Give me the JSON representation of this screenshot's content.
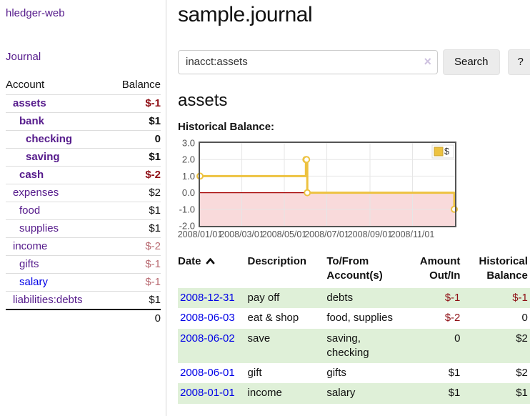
{
  "sidebar": {
    "app_title": "hledger-web",
    "journal_link": "Journal",
    "accounts_table": {
      "headers": {
        "account": "Account",
        "balance": "Balance"
      },
      "rows": [
        {
          "account": "assets",
          "balance": "$-1",
          "depth": 1,
          "bold": true,
          "negative": true,
          "link_color": "purple"
        },
        {
          "account": "bank",
          "balance": "$1",
          "depth": 2,
          "bold": true,
          "negative": false,
          "link_color": "purple"
        },
        {
          "account": "checking",
          "balance": "0",
          "depth": 3,
          "bold": true,
          "negative": false,
          "link_color": "purple"
        },
        {
          "account": "saving",
          "balance": "$1",
          "depth": 3,
          "bold": true,
          "negative": false,
          "link_color": "purple"
        },
        {
          "account": "cash",
          "balance": "$-2",
          "depth": 2,
          "bold": true,
          "negative": true,
          "link_color": "purple"
        },
        {
          "account": "expenses",
          "balance": "$2",
          "depth": 1,
          "bold": false,
          "negative": false,
          "link_color": "purple"
        },
        {
          "account": "food",
          "balance": "$1",
          "depth": 2,
          "bold": false,
          "negative": false,
          "link_color": "purple"
        },
        {
          "account": "supplies",
          "balance": "$1",
          "depth": 2,
          "bold": false,
          "negative": false,
          "link_color": "purple"
        },
        {
          "account": "income",
          "balance": "$-2",
          "depth": 1,
          "bold": false,
          "negative": true,
          "link_color": "purple"
        },
        {
          "account": "gifts",
          "balance": "$-1",
          "depth": 2,
          "bold": false,
          "negative": true,
          "link_color": "purple"
        },
        {
          "account": "salary",
          "balance": "$-1",
          "depth": 2,
          "bold": false,
          "negative": true,
          "link_color": "blue"
        },
        {
          "account": "liabilities:debts",
          "balance": "$1",
          "depth": 1,
          "bold": false,
          "negative": false,
          "link_color": "purple"
        }
      ],
      "total": "0"
    }
  },
  "header": {
    "title": "sample.journal"
  },
  "search": {
    "value": "inacct:assets",
    "clear_icon": "×",
    "button_label": "Search",
    "help_label": "?"
  },
  "account_page": {
    "title": "assets"
  },
  "chart_data": {
    "type": "line",
    "title": "Historical Balance:",
    "series": [
      {
        "name": "$",
        "color": "#edc240",
        "step": true,
        "points": [
          {
            "date": "2008-01-01",
            "value": 1
          },
          {
            "date": "2008-06-01",
            "value": 2
          },
          {
            "date": "2008-06-02",
            "value": 2
          },
          {
            "date": "2008-06-03",
            "value": 0
          },
          {
            "date": "2008-12-31",
            "value": -1
          }
        ]
      }
    ],
    "x_ticks": [
      "2008/01/01",
      "2008/03/01",
      "2008/05/01",
      "2008/07/01",
      "2008/09/01",
      "2008/11/01"
    ],
    "x_range": [
      "2008-01-01",
      "2009-01-01"
    ],
    "y_ticks": [
      3.0,
      2.0,
      1.0,
      0.0,
      -1.0,
      -2.0
    ],
    "y_range": [
      -2,
      3
    ],
    "grid": true,
    "negative_region_color": "#f9dadb",
    "zero_line_color": "#a40000",
    "border_color": "#545454",
    "legend": {
      "label": "$",
      "position": "top-right"
    }
  },
  "register": {
    "headers": {
      "date": "Date",
      "description": "Description",
      "account": "To/From\nAccount(s)",
      "amount": "Amount\nOut/In",
      "balance": "Historical\nBalance"
    },
    "sort": {
      "column": "date",
      "direction": "ascending"
    },
    "rows": [
      {
        "date": "2008-12-31",
        "description": "pay off",
        "accounts": "debts",
        "amount": "$-1",
        "amount_negative": true,
        "balance": "$-1",
        "balance_negative": true
      },
      {
        "date": "2008-06-03",
        "description": "eat & shop",
        "accounts": "food, supplies",
        "amount": "$-2",
        "amount_negative": true,
        "balance": "0",
        "balance_negative": false
      },
      {
        "date": "2008-06-02",
        "description": "save",
        "accounts": "saving, checking",
        "amount": "0",
        "amount_negative": false,
        "balance": "$2",
        "balance_negative": false
      },
      {
        "date": "2008-06-01",
        "description": "gift",
        "accounts": "gifts",
        "amount": "$1",
        "amount_negative": false,
        "balance": "$2",
        "balance_negative": false
      },
      {
        "date": "2008-01-01",
        "description": "income",
        "accounts": "salary",
        "amount": "$1",
        "amount_negative": false,
        "balance": "$1",
        "balance_negative": false
      }
    ]
  }
}
